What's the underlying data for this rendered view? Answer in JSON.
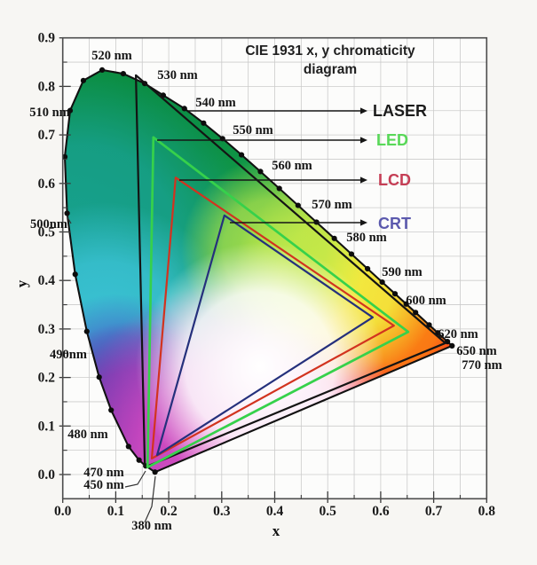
{
  "title": {
    "line1": "CIE 1931 x, y chromaticity",
    "line2": "diagram"
  },
  "axes": {
    "x_label": "x",
    "y_label": "y",
    "x_ticks": [
      "0.0",
      "0.1",
      "0.2",
      "0.3",
      "0.4",
      "0.5",
      "0.6",
      "0.7",
      "0.8"
    ],
    "y_ticks": [
      "0.0",
      "0.1",
      "0.2",
      "0.3",
      "0.4",
      "0.5",
      "0.6",
      "0.7",
      "0.8",
      "0.9"
    ]
  },
  "legend": [
    {
      "id": "laser",
      "label": "LASER",
      "color": "#1b1b1b"
    },
    {
      "id": "led",
      "label": "LED",
      "color": "#58d858"
    },
    {
      "id": "lcd",
      "label": "LCD",
      "color": "#c53e55"
    },
    {
      "id": "crt",
      "label": "CRT",
      "color": "#5b59ad"
    }
  ],
  "colors": {
    "grid": "#cbcbcb",
    "frame": "#4d4d4d",
    "locus": "#111111",
    "background": "#f7f6f3",
    "plot_background": "#fcfcfb"
  },
  "chart_data": {
    "type": "line",
    "title": "CIE 1931 x, y chromaticity diagram",
    "xlabel": "x",
    "ylabel": "y",
    "xlim": [
      0,
      0.8
    ],
    "ylim": [
      -0.05,
      0.9
    ],
    "grid_step": 0.05,
    "legend_position": "right",
    "spectral_locus": [
      {
        "nm": 380,
        "x": 0.1741,
        "y": 0.005
      },
      {
        "nm": 450,
        "x": 0.1566,
        "y": 0.0177
      },
      {
        "nm": 460,
        "x": 0.144,
        "y": 0.0297
      },
      {
        "nm": 470,
        "x": 0.1241,
        "y": 0.0578
      },
      {
        "nm": 480,
        "x": 0.0913,
        "y": 0.1327
      },
      {
        "nm": 485,
        "x": 0.0687,
        "y": 0.2007
      },
      {
        "nm": 490,
        "x": 0.0454,
        "y": 0.295
      },
      {
        "nm": 495,
        "x": 0.0235,
        "y": 0.4127
      },
      {
        "nm": 500,
        "x": 0.0082,
        "y": 0.5384
      },
      {
        "nm": 505,
        "x": 0.0039,
        "y": 0.6548
      },
      {
        "nm": 510,
        "x": 0.0139,
        "y": 0.7502
      },
      {
        "nm": 515,
        "x": 0.0389,
        "y": 0.812
      },
      {
        "nm": 520,
        "x": 0.0743,
        "y": 0.8338
      },
      {
        "nm": 525,
        "x": 0.1142,
        "y": 0.8262
      },
      {
        "nm": 530,
        "x": 0.1547,
        "y": 0.8059
      },
      {
        "nm": 535,
        "x": 0.1896,
        "y": 0.7817
      },
      {
        "nm": 540,
        "x": 0.2296,
        "y": 0.7543
      },
      {
        "nm": 545,
        "x": 0.2658,
        "y": 0.7243
      },
      {
        "nm": 550,
        "x": 0.3016,
        "y": 0.6923
      },
      {
        "nm": 555,
        "x": 0.3373,
        "y": 0.6589
      },
      {
        "nm": 560,
        "x": 0.3731,
        "y": 0.6245
      },
      {
        "nm": 565,
        "x": 0.4087,
        "y": 0.5896
      },
      {
        "nm": 570,
        "x": 0.4441,
        "y": 0.5547
      },
      {
        "nm": 575,
        "x": 0.4788,
        "y": 0.5202
      },
      {
        "nm": 580,
        "x": 0.5125,
        "y": 0.4866
      },
      {
        "nm": 585,
        "x": 0.5448,
        "y": 0.4544
      },
      {
        "nm": 590,
        "x": 0.5752,
        "y": 0.4242
      },
      {
        "nm": 595,
        "x": 0.6029,
        "y": 0.3965
      },
      {
        "nm": 600,
        "x": 0.627,
        "y": 0.3725
      },
      {
        "nm": 605,
        "x": 0.6482,
        "y": 0.3514
      },
      {
        "nm": 610,
        "x": 0.6658,
        "y": 0.334
      },
      {
        "nm": 620,
        "x": 0.6915,
        "y": 0.3083
      },
      {
        "nm": 630,
        "x": 0.7079,
        "y": 0.292
      },
      {
        "nm": 650,
        "x": 0.726,
        "y": 0.274
      },
      {
        "nm": 770,
        "x": 0.7347,
        "y": 0.2653
      }
    ],
    "gamuts": [
      {
        "name": "LASER",
        "color": "#141414",
        "vertices": [
          [
            0.138,
            0.823
          ],
          [
            0.722,
            0.271
          ],
          [
            0.155,
            0.015
          ]
        ]
      },
      {
        "name": "LED",
        "color": "#36d14b",
        "vertices": [
          [
            0.171,
            0.695
          ],
          [
            0.652,
            0.294
          ],
          [
            0.16,
            0.015
          ]
        ]
      },
      {
        "name": "LCD",
        "color": "#d2331f",
        "vertices": [
          [
            0.213,
            0.612
          ],
          [
            0.625,
            0.307
          ],
          [
            0.168,
            0.033
          ]
        ]
      },
      {
        "name": "CRT",
        "color": "#25307c",
        "vertices": [
          [
            0.305,
            0.534
          ],
          [
            0.585,
            0.324
          ],
          [
            0.178,
            0.04
          ]
        ]
      }
    ],
    "wavelength_labels": [
      {
        "key": "520",
        "text": "520 nm"
      },
      {
        "key": "530",
        "text": "530 nm"
      },
      {
        "key": "540",
        "text": "540 nm"
      },
      {
        "key": "550",
        "text": "550 nm"
      },
      {
        "key": "560",
        "text": "560 nm"
      },
      {
        "key": "570",
        "text": "570 nm"
      },
      {
        "key": "580",
        "text": "580 nm"
      },
      {
        "key": "590",
        "text": "590 nm"
      },
      {
        "key": "600",
        "text": "600 nm"
      },
      {
        "key": "620",
        "text": "620 nm"
      },
      {
        "key": "650",
        "text": "650 nm"
      },
      {
        "key": "770",
        "text": "770 nm"
      },
      {
        "key": "510",
        "text": "510 nm"
      },
      {
        "key": "500",
        "text": "500nm"
      },
      {
        "key": "490",
        "text": "490nm"
      },
      {
        "key": "480",
        "text": "480 nm"
      },
      {
        "key": "470",
        "text": "470 nm"
      },
      {
        "key": "450",
        "text": "450 nm"
      },
      {
        "key": "380",
        "text": "380 nm"
      }
    ]
  }
}
